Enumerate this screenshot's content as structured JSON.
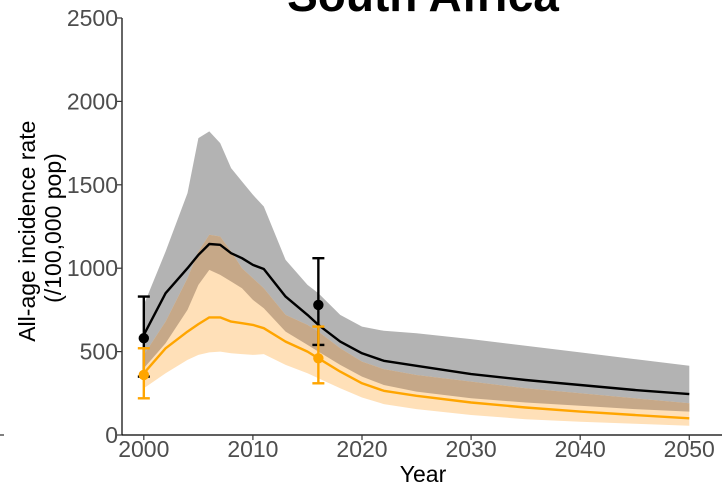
{
  "chart_data": {
    "type": "line",
    "title": "South Africa",
    "xlabel": "Year",
    "ylabel_lines": [
      "All-age incidence rate",
      "(/100,000 pop)"
    ],
    "xlim": [
      1998,
      2053
    ],
    "ylim": [
      0,
      2500
    ],
    "x_ticks": [
      2000,
      2010,
      2020,
      2030,
      2040,
      2050
    ],
    "y_ticks": [
      0,
      500,
      1000,
      1500,
      2000,
      2500
    ],
    "grid": false,
    "colors": {
      "black_line": "#000000",
      "black_band": "#b3b3b3",
      "orange_line": "#ffa500",
      "orange_band": "#ffe0b8",
      "overlap_band": "#c6a888",
      "axis": "#000000",
      "tick_text": "#4d4d4d"
    },
    "series": [
      {
        "color": "#000000",
        "band_color": "#b3b3b3",
        "line": [
          [
            2000,
            600
          ],
          [
            2002,
            850
          ],
          [
            2004,
            1000
          ],
          [
            2005,
            1080
          ],
          [
            2006,
            1145
          ],
          [
            2007,
            1140
          ],
          [
            2008,
            1090
          ],
          [
            2009,
            1060
          ],
          [
            2010,
            1020
          ],
          [
            2011,
            995
          ],
          [
            2013,
            830
          ],
          [
            2015,
            720
          ],
          [
            2016,
            660
          ],
          [
            2018,
            560
          ],
          [
            2020,
            490
          ],
          [
            2022,
            445
          ],
          [
            2025,
            415
          ],
          [
            2030,
            365
          ],
          [
            2035,
            330
          ],
          [
            2040,
            300
          ],
          [
            2045,
            270
          ],
          [
            2050,
            245
          ]
        ],
        "lower": [
          [
            2000,
            400
          ],
          [
            2002,
            550
          ],
          [
            2004,
            750
          ],
          [
            2005,
            900
          ],
          [
            2006,
            990
          ],
          [
            2007,
            960
          ],
          [
            2008,
            920
          ],
          [
            2009,
            880
          ],
          [
            2010,
            810
          ],
          [
            2011,
            760
          ],
          [
            2013,
            620
          ],
          [
            2015,
            540
          ],
          [
            2016,
            500
          ],
          [
            2018,
            420
          ],
          [
            2020,
            350
          ],
          [
            2022,
            300
          ],
          [
            2025,
            260
          ],
          [
            2030,
            220
          ],
          [
            2035,
            195
          ],
          [
            2040,
            175
          ],
          [
            2045,
            155
          ],
          [
            2050,
            140
          ]
        ],
        "upper": [
          [
            2000,
            780
          ],
          [
            2002,
            1100
          ],
          [
            2004,
            1450
          ],
          [
            2005,
            1780
          ],
          [
            2006,
            1820
          ],
          [
            2007,
            1750
          ],
          [
            2008,
            1600
          ],
          [
            2009,
            1520
          ],
          [
            2010,
            1440
          ],
          [
            2011,
            1370
          ],
          [
            2013,
            1050
          ],
          [
            2015,
            900
          ],
          [
            2016,
            850
          ],
          [
            2018,
            720
          ],
          [
            2020,
            650
          ],
          [
            2022,
            625
          ],
          [
            2025,
            610
          ],
          [
            2030,
            575
          ],
          [
            2035,
            535
          ],
          [
            2040,
            495
          ],
          [
            2045,
            455
          ],
          [
            2050,
            415
          ]
        ],
        "points": [
          {
            "x": 2000,
            "y": 580,
            "low": 350,
            "high": 830
          },
          {
            "x": 2016,
            "y": 780,
            "low": 540,
            "high": 1060
          }
        ]
      },
      {
        "color": "#ffa500",
        "band_color": "#ffe0b8",
        "line": [
          [
            2000,
            370
          ],
          [
            2002,
            520
          ],
          [
            2004,
            620
          ],
          [
            2005,
            665
          ],
          [
            2006,
            705
          ],
          [
            2007,
            705
          ],
          [
            2008,
            680
          ],
          [
            2009,
            670
          ],
          [
            2010,
            660
          ],
          [
            2011,
            640
          ],
          [
            2013,
            560
          ],
          [
            2015,
            500
          ],
          [
            2016,
            460
          ],
          [
            2018,
            380
          ],
          [
            2020,
            310
          ],
          [
            2022,
            265
          ],
          [
            2025,
            235
          ],
          [
            2030,
            195
          ],
          [
            2035,
            165
          ],
          [
            2040,
            140
          ],
          [
            2045,
            120
          ],
          [
            2050,
            100
          ]
        ],
        "lower": [
          [
            2000,
            280
          ],
          [
            2002,
            370
          ],
          [
            2004,
            450
          ],
          [
            2005,
            480
          ],
          [
            2006,
            495
          ],
          [
            2007,
            500
          ],
          [
            2008,
            490
          ],
          [
            2009,
            485
          ],
          [
            2010,
            480
          ],
          [
            2011,
            485
          ],
          [
            2013,
            420
          ],
          [
            2015,
            370
          ],
          [
            2016,
            340
          ],
          [
            2018,
            280
          ],
          [
            2020,
            225
          ],
          [
            2022,
            185
          ],
          [
            2025,
            155
          ],
          [
            2030,
            120
          ],
          [
            2035,
            95
          ],
          [
            2040,
            80
          ],
          [
            2045,
            68
          ],
          [
            2050,
            55
          ]
        ],
        "upper": [
          [
            2000,
            480
          ],
          [
            2002,
            680
          ],
          [
            2004,
            940
          ],
          [
            2005,
            1100
          ],
          [
            2006,
            1200
          ],
          [
            2007,
            1190
          ],
          [
            2008,
            1100
          ],
          [
            2009,
            1000
          ],
          [
            2010,
            940
          ],
          [
            2011,
            880
          ],
          [
            2013,
            720
          ],
          [
            2015,
            660
          ],
          [
            2016,
            620
          ],
          [
            2018,
            520
          ],
          [
            2020,
            440
          ],
          [
            2022,
            395
          ],
          [
            2025,
            360
          ],
          [
            2030,
            320
          ],
          [
            2035,
            280
          ],
          [
            2040,
            250
          ],
          [
            2045,
            220
          ],
          [
            2050,
            190
          ]
        ],
        "points": [
          {
            "x": 2000,
            "y": 360,
            "low": 220,
            "high": 520
          },
          {
            "x": 2016,
            "y": 460,
            "low": 310,
            "high": 650
          }
        ]
      }
    ]
  }
}
